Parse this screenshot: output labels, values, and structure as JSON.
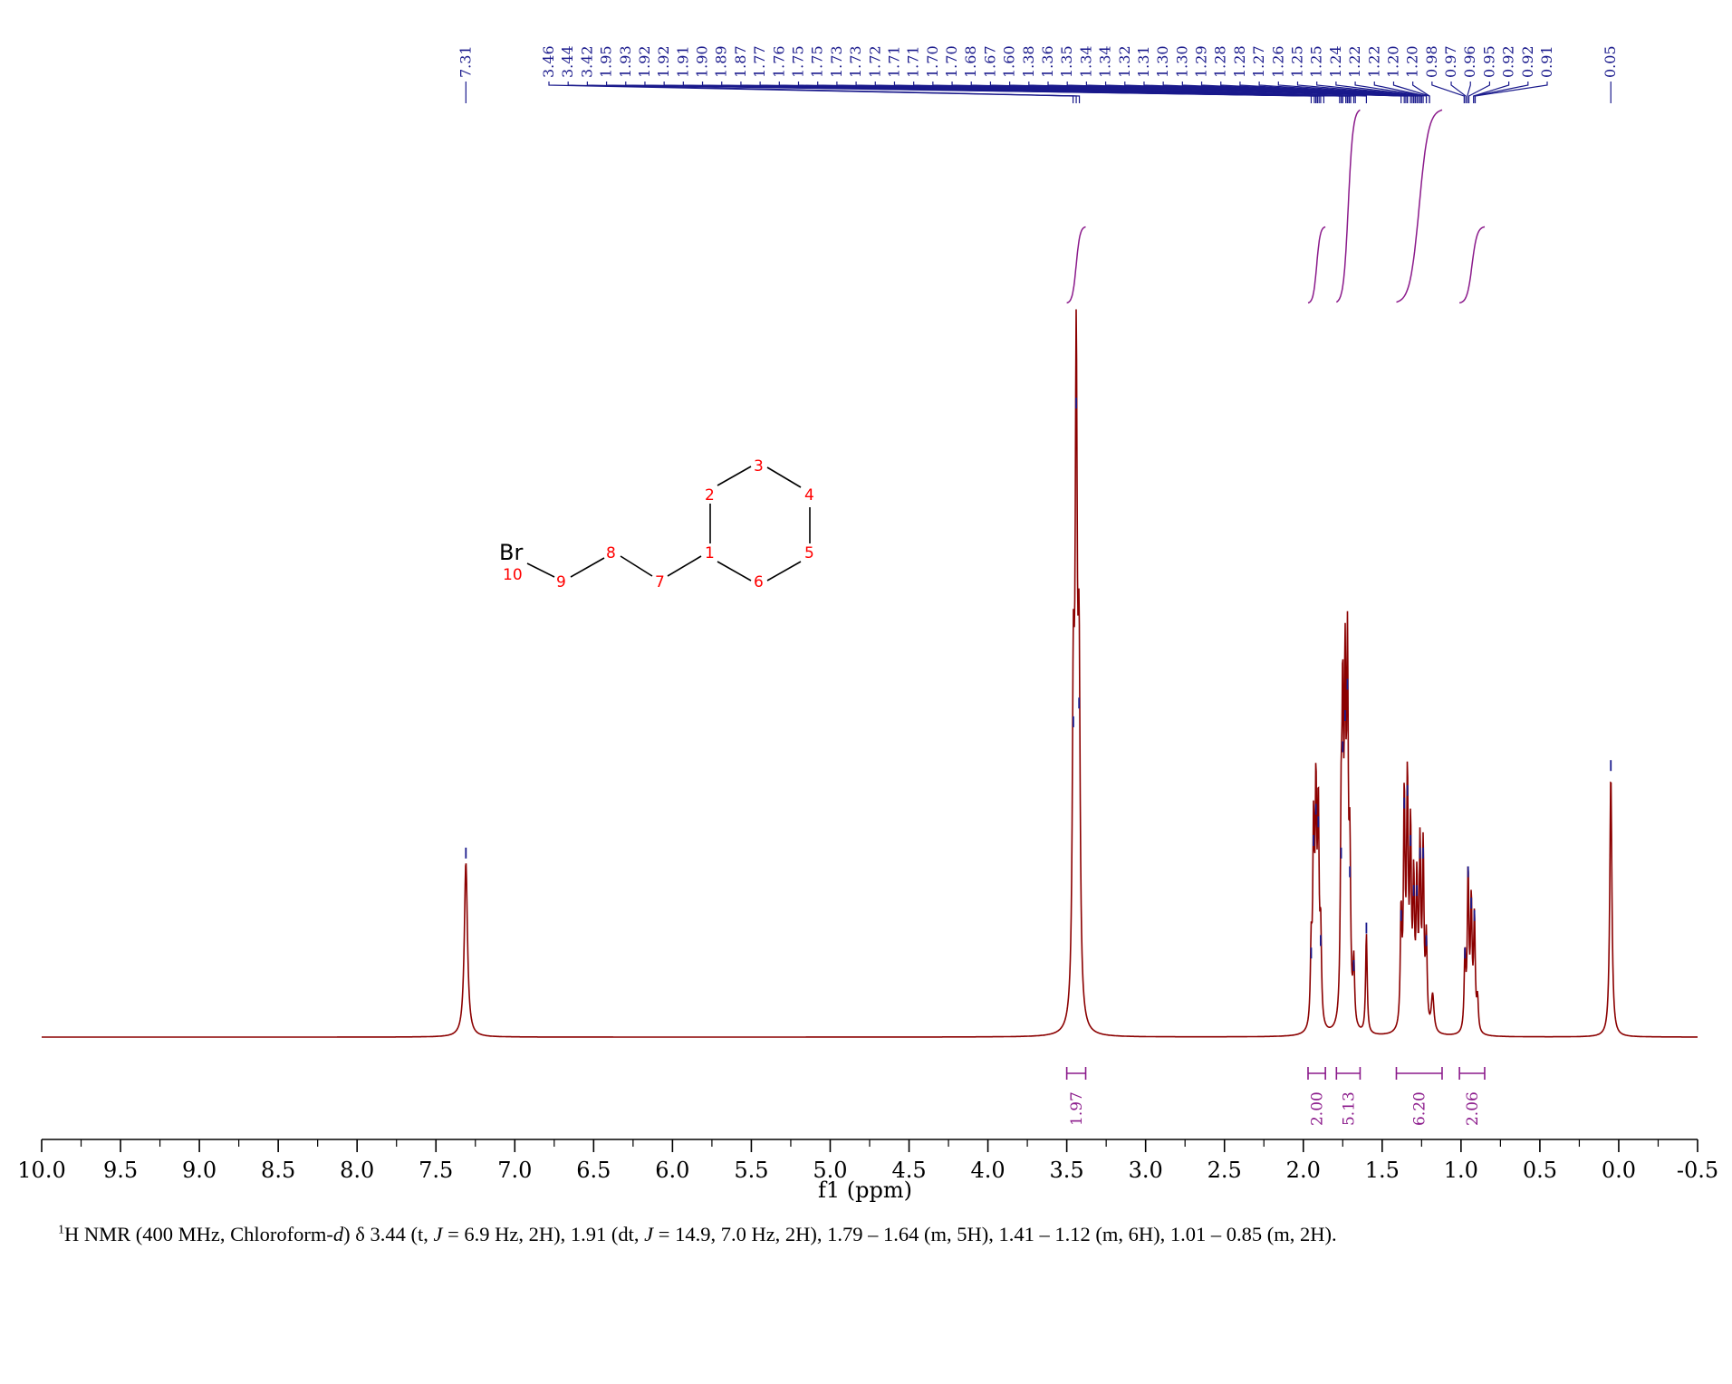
{
  "chart_data": {
    "type": "line",
    "xlabel": "f1 (ppm)",
    "xlim": [
      10.0,
      -0.5
    ],
    "x_ticks": [
      "10.0",
      "9.5",
      "9.0",
      "8.5",
      "8.0",
      "7.5",
      "7.0",
      "6.5",
      "6.0",
      "5.5",
      "5.0",
      "4.5",
      "4.0",
      "3.5",
      "3.0",
      "2.5",
      "2.0",
      "1.5",
      "1.0",
      "0.5",
      "0.0",
      "-0.5"
    ],
    "x_tick_values": [
      10.0,
      9.5,
      9.0,
      8.5,
      8.0,
      7.5,
      7.0,
      6.5,
      6.0,
      5.5,
      5.0,
      4.5,
      4.0,
      3.5,
      3.0,
      2.5,
      2.0,
      1.5,
      1.0,
      0.5,
      0.0,
      -0.5
    ],
    "spectrum_color": "#8b0000",
    "peak_label_color": "#1a1a8c",
    "integral_color": "#8b1a8b",
    "peaks": [
      {
        "ppm": 7.31,
        "height": 0.28,
        "width": 0.012
      },
      {
        "ppm": 3.458,
        "height": 0.49,
        "width": 0.008
      },
      {
        "ppm": 3.44,
        "height": 1.0,
        "width": 0.008
      },
      {
        "ppm": 3.422,
        "height": 0.52,
        "width": 0.008
      },
      {
        "ppm": 1.95,
        "height": 0.12,
        "width": 0.006
      },
      {
        "ppm": 1.935,
        "height": 0.3,
        "width": 0.006
      },
      {
        "ppm": 1.92,
        "height": 0.35,
        "width": 0.006
      },
      {
        "ppm": 1.905,
        "height": 0.33,
        "width": 0.006
      },
      {
        "ppm": 1.89,
        "height": 0.14,
        "width": 0.006
      },
      {
        "ppm": 1.76,
        "height": 0.28,
        "width": 0.006
      },
      {
        "ppm": 1.75,
        "height": 0.45,
        "width": 0.006
      },
      {
        "ppm": 1.735,
        "height": 0.5,
        "width": 0.006
      },
      {
        "ppm": 1.72,
        "height": 0.55,
        "width": 0.006
      },
      {
        "ppm": 1.705,
        "height": 0.25,
        "width": 0.006
      },
      {
        "ppm": 1.68,
        "height": 0.1,
        "width": 0.006
      },
      {
        "ppm": 1.6,
        "height": 0.16,
        "width": 0.006
      },
      {
        "ppm": 1.38,
        "height": 0.18,
        "width": 0.006
      },
      {
        "ppm": 1.36,
        "height": 0.36,
        "width": 0.006
      },
      {
        "ppm": 1.34,
        "height": 0.38,
        "width": 0.006
      },
      {
        "ppm": 1.32,
        "height": 0.3,
        "width": 0.006
      },
      {
        "ppm": 1.3,
        "height": 0.22,
        "width": 0.006
      },
      {
        "ppm": 1.28,
        "height": 0.22,
        "width": 0.006
      },
      {
        "ppm": 1.26,
        "height": 0.28,
        "width": 0.006
      },
      {
        "ppm": 1.24,
        "height": 0.28,
        "width": 0.006
      },
      {
        "ppm": 1.22,
        "height": 0.14,
        "width": 0.006
      },
      {
        "ppm": 1.18,
        "height": 0.06,
        "width": 0.01
      },
      {
        "ppm": 0.975,
        "height": 0.12,
        "width": 0.006
      },
      {
        "ppm": 0.955,
        "height": 0.25,
        "width": 0.006
      },
      {
        "ppm": 0.935,
        "height": 0.2,
        "width": 0.006
      },
      {
        "ppm": 0.915,
        "height": 0.18,
        "width": 0.006
      },
      {
        "ppm": 0.895,
        "height": 0.05,
        "width": 0.006
      },
      {
        "ppm": 0.05,
        "height": 0.42,
        "width": 0.008
      }
    ],
    "peak_labels": [
      "7.31",
      "3.46",
      "3.44",
      "3.42",
      "1.95",
      "1.93",
      "1.92",
      "1.92",
      "1.91",
      "1.90",
      "1.89",
      "1.87",
      "1.77",
      "1.76",
      "1.75",
      "1.75",
      "1.73",
      "1.73",
      "1.72",
      "1.71",
      "1.71",
      "1.70",
      "1.70",
      "1.68",
      "1.67",
      "1.60",
      "1.38",
      "1.36",
      "1.35",
      "1.34",
      "1.34",
      "1.32",
      "1.31",
      "1.30",
      "1.30",
      "1.29",
      "1.28",
      "1.28",
      "1.27",
      "1.26",
      "1.25",
      "1.25",
      "1.24",
      "1.22",
      "1.22",
      "1.20",
      "1.20",
      "0.98",
      "0.97",
      "0.96",
      "0.95",
      "0.92",
      "0.92",
      "0.91",
      "0.05"
    ],
    "integrals": [
      {
        "from": 3.5,
        "to": 3.38,
        "value": "1.97",
        "start_frac": 0.0,
        "end_frac": 0.18
      },
      {
        "from": 1.97,
        "to": 1.86,
        "value": "2.00",
        "start_frac": 0.0,
        "end_frac": 0.18
      },
      {
        "from": 1.79,
        "to": 1.64,
        "value": "5.13",
        "start_frac": 0.0,
        "end_frac": 0.47
      },
      {
        "from": 1.41,
        "to": 1.12,
        "value": "6.20",
        "start_frac": 0.0,
        "end_frac": 0.55
      },
      {
        "from": 1.01,
        "to": 0.85,
        "value": "2.06",
        "start_frac": 0.0,
        "end_frac": 0.18
      }
    ]
  },
  "structure": {
    "br_label": "Br",
    "atom_numbers": [
      "1",
      "2",
      "3",
      "4",
      "5",
      "6",
      "7",
      "8",
      "9",
      "10"
    ]
  },
  "caption": {
    "superscript": "1",
    "prefix": "H NMR (400 MHz, Chloroform-",
    "solvent_italic": "d",
    "body_1": ") δ 3.44 (t, ",
    "j_1": "J",
    "body_2": " = 6.9 Hz, 2H), 1.91 (dt, ",
    "j_2": "J",
    "body_3": " = 14.9, 7.0 Hz, 2H), 1.79 – 1.64 (m, 5H), 1.41 – 1.12 (m, 6H), 1.01 – 0.85 (m, 2H)."
  }
}
